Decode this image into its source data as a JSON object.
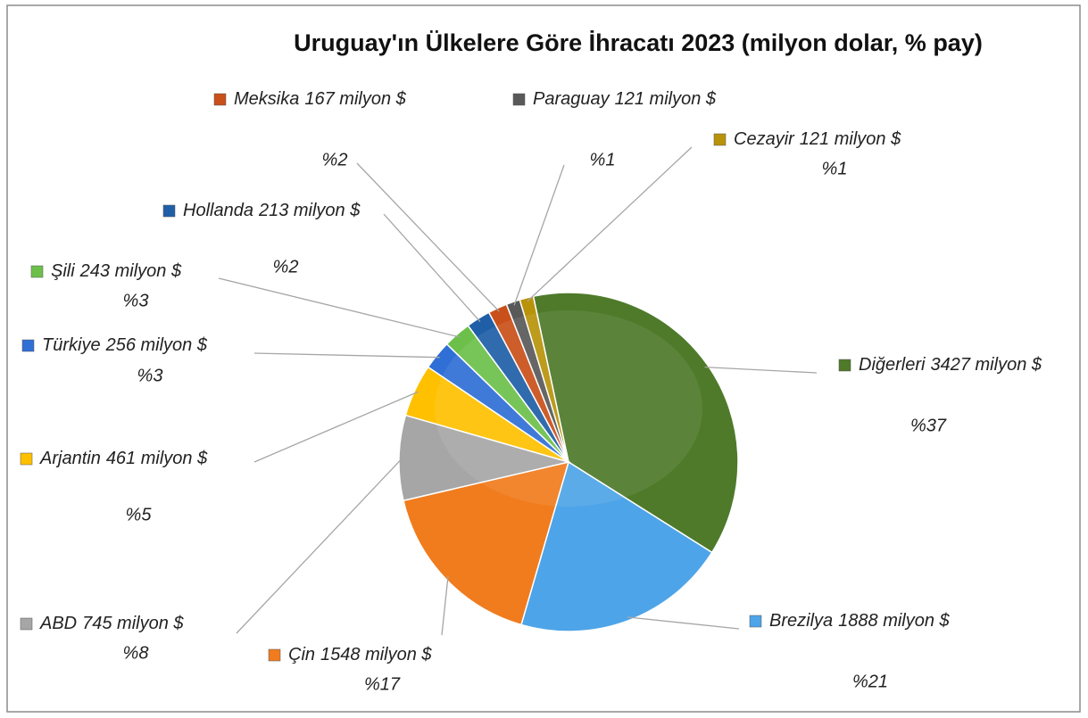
{
  "chart_data": {
    "type": "pie",
    "title": "Uruguay'ın Ülkelere Göre İhracatı 2023 (milyon dolar, % pay)",
    "categories": [
      "Diğerleri",
      "Brezilya",
      "Çin",
      "ABD",
      "Arjantin",
      "Türkiye",
      "Şili",
      "Hollanda",
      "Meksika",
      "Paraguay",
      "Cezayir"
    ],
    "values": [
      3427,
      1888,
      1548,
      745,
      461,
      256,
      243,
      213,
      167,
      121,
      121
    ],
    "value_labels": [
      "3427 milyon $",
      "1888 milyon $",
      "1548 milyon $",
      "745 milyon $",
      "461 milyon $",
      "256 milyon $",
      "243 milyon $",
      "213 milyon $",
      "167 milyon $",
      "121 milyon $",
      "121 milyon $"
    ],
    "shares": [
      37,
      21,
      17,
      8,
      5,
      3,
      3,
      2,
      2,
      1,
      1
    ],
    "share_labels": [
      "%37",
      "%21",
      "%17",
      "%8",
      "%5",
      "%3",
      "%3",
      "%2",
      "%2",
      "%1",
      "%1"
    ],
    "colors": [
      "#4e7a2a",
      "#4ea4e8",
      "#f07c1e",
      "#a6a6a6",
      "#ffc000",
      "#2f6fd6",
      "#6cc04a",
      "#1f5fa8",
      "#c9501a",
      "#595959",
      "#b8930a"
    ]
  }
}
